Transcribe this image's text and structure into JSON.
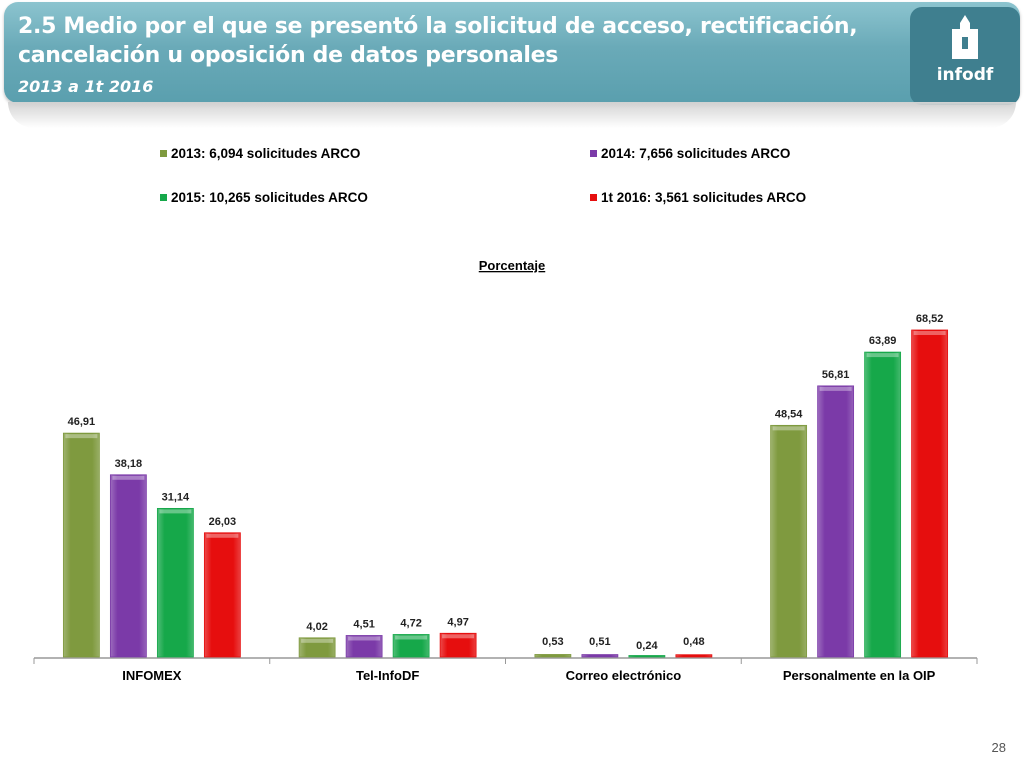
{
  "header": {
    "title": "2.5 Medio por el que se presentó  la solicitud de acceso, rectificación, cancelación u oposición de datos personales",
    "subtitle": "2013 a 1t 2016",
    "logo_text": "infodf"
  },
  "page_number": "28",
  "chart_data": {
    "type": "bar",
    "title": "Porcentaje",
    "categories": [
      "INFOMEX",
      "Tel-InfoDF",
      "Correo electrónico",
      "Personalmente en la OIP"
    ],
    "series": [
      {
        "name": "2013: 6,094 solicitudes ARCO",
        "color": "#7f9a3f",
        "values": [
          46.91,
          4.02,
          0.53,
          48.54
        ],
        "labels": [
          "46,91",
          "4,02",
          "0,53",
          "48,54"
        ]
      },
      {
        "name": "2014: 7,656 solicitudes ARCO",
        "color": "#7b3aa8",
        "values": [
          38.18,
          4.51,
          0.51,
          56.81
        ],
        "labels": [
          "38,18",
          "4,51",
          "0,51",
          "56,81"
        ]
      },
      {
        "name": "2015: 10,265 solicitudes ARCO",
        "color": "#16a84a",
        "values": [
          31.14,
          4.72,
          0.24,
          63.89
        ],
        "labels": [
          "31,14",
          "4,72",
          "0,24",
          "63,89"
        ]
      },
      {
        "name": "1t 2016: 3,561 solicitudes ARCO",
        "color": "#e60e0e",
        "values": [
          26.03,
          4.97,
          0.48,
          68.52
        ],
        "labels": [
          "26,03",
          "4,97",
          "0,48",
          "68,52"
        ]
      }
    ],
    "ylim": [
      0,
      70
    ],
    "grid": false,
    "legend_position": "top"
  }
}
